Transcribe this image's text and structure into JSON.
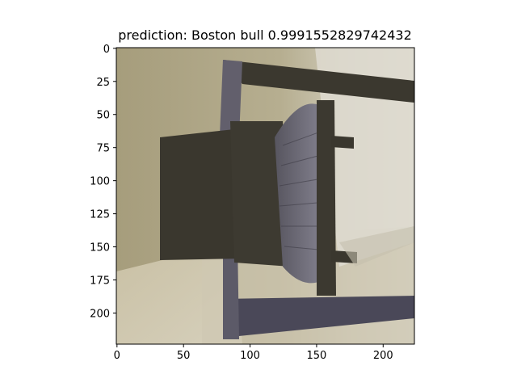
{
  "figure": {
    "title": "prediction: Boston bull 0.9991552829742432"
  },
  "image": {
    "description_colors": {
      "wall_left": "#a39a78",
      "wall_right": "#d9d6c6",
      "floor": "#c9c1a8",
      "chair_dark": "#3a372e",
      "chair_seat": "#6f6d7a"
    }
  },
  "axes": {
    "x_ticks": [
      "0",
      "50",
      "100",
      "150",
      "200"
    ],
    "y_ticks": [
      "0",
      "25",
      "50",
      "75",
      "100",
      "125",
      "150",
      "175",
      "200"
    ],
    "x_range": [
      0,
      224
    ],
    "y_range": [
      0,
      224
    ]
  }
}
